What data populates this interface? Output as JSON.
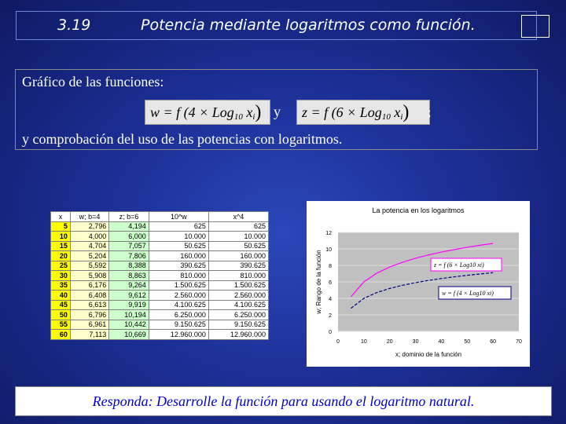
{
  "header": {
    "slide_number": "3.19",
    "title": "Potencia mediante logaritmos como función."
  },
  "intro": {
    "line1": "Gráfico de las funciones:",
    "formula1": {
      "lhs": "w = f",
      "arg_open": "(4 × Log",
      "base": "10",
      "var": "x",
      "index": "i",
      "arg_close": ")"
    },
    "conjunction": "y",
    "formula2": {
      "lhs": "z = f",
      "arg_open": "(6 × Log",
      "base": "10",
      "var": "x",
      "index": "i",
      "arg_close": ")"
    },
    "semicolon": ";",
    "line2": "y comprobación del uso de las potencias con logaritmos."
  },
  "table": {
    "headers": [
      "x",
      "w; b=4",
      "z; b=6",
      "10^w",
      "x^4"
    ],
    "rows": [
      [
        "5",
        "2,796",
        "4,194",
        "625",
        "625"
      ],
      [
        "10",
        "4,000",
        "6,000",
        "10.000",
        "10.000"
      ],
      [
        "15",
        "4,704",
        "7,057",
        "50.625",
        "50.625"
      ],
      [
        "20",
        "5,204",
        "7,806",
        "160.000",
        "160.000"
      ],
      [
        "25",
        "5,592",
        "8,388",
        "390.625",
        "390.625"
      ],
      [
        "30",
        "5,908",
        "8,863",
        "810.000",
        "810.000"
      ],
      [
        "35",
        "6,176",
        "9,264",
        "1.500.625",
        "1.500.625"
      ],
      [
        "40",
        "6,408",
        "9,612",
        "2.560.000",
        "2.560.000"
      ],
      [
        "45",
        "6,613",
        "9,919",
        "4.100.625",
        "4.100.625"
      ],
      [
        "50",
        "6,796",
        "10,194",
        "6.250.000",
        "6.250.000"
      ],
      [
        "55",
        "6,961",
        "10,442",
        "9.150.625",
        "9.150.625"
      ],
      [
        "60",
        "7,113",
        "10,669",
        "12.960.000",
        "12.960.000"
      ]
    ]
  },
  "chart_data": {
    "type": "line",
    "title": "La potencia en los logaritmos",
    "xlabel": "x; dominio de la función",
    "ylabel": "w; Rango de la función",
    "xlim": [
      0,
      70
    ],
    "ylim": [
      0,
      12
    ],
    "xticks": [
      0,
      10,
      20,
      30,
      40,
      50,
      60,
      70
    ],
    "yticks": [
      0,
      2,
      4,
      6,
      8,
      10,
      12
    ],
    "grid": true,
    "plot_background": "#c0c0c0",
    "x": [
      5,
      10,
      15,
      20,
      25,
      30,
      35,
      40,
      45,
      50,
      55,
      60
    ],
    "series": [
      {
        "color": "#ff00ff",
        "style": "solid",
        "values": [
          4.194,
          6.0,
          7.057,
          7.806,
          8.388,
          8.863,
          9.264,
          9.612,
          9.919,
          10.194,
          10.442,
          10.669
        ]
      },
      {
        "color": "#000080",
        "style": "dashed",
        "values": [
          2.796,
          4.0,
          4.704,
          5.204,
          5.592,
          5.908,
          6.176,
          6.408,
          6.613,
          6.796,
          6.961,
          7.113
        ]
      }
    ],
    "annotations": [
      {
        "text": "z = f (6 × Log10 xi)",
        "border_color": "#ff00ff"
      },
      {
        "text": "w = f (4 × Log10 xi)",
        "border_color": "#000080"
      }
    ]
  },
  "answer": "Responda: Desarrolle la función para usando el logaritmo natural."
}
